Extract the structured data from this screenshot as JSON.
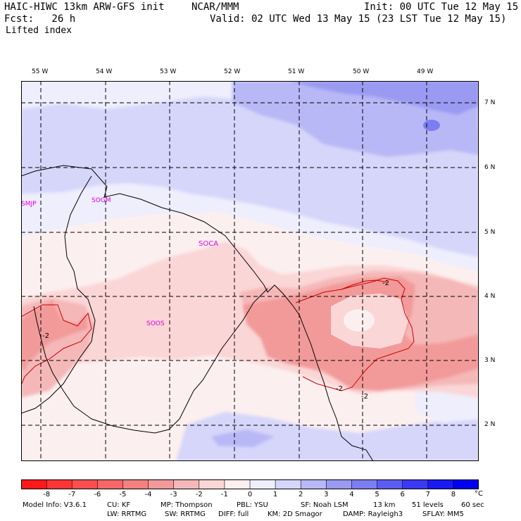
{
  "header": {
    "model": "HAIC-HIWC 13km ARW-GFS init",
    "org": "NCAR/MMM",
    "init": "Init: 00 UTC Tue 12 May 15",
    "fcst": "Fcst:   26 h",
    "valid": "Valid: 02 UTC Wed 13 May 15 (23 LST Tue 12 May 15)",
    "field": "Lifted index"
  },
  "map": {
    "lon_ticks": [
      "55 W",
      "54 W",
      "53 W",
      "52 W",
      "51 W",
      "50 W",
      "49 W"
    ],
    "lat_ticks": [
      "7 N",
      "6 N",
      "5 N",
      "4 N",
      "3 N",
      "2 N"
    ],
    "stations": [
      "SMJP",
      "SOGM",
      "SOCA",
      "SOOS"
    ],
    "contour_labels": [
      "-2",
      "-2",
      "-2",
      "-2"
    ]
  },
  "colorbar": {
    "labels": [
      "-8",
      "-7",
      "-6",
      "-5",
      "-4",
      "-3",
      "-2",
      "-1",
      "0",
      "1",
      "2",
      "3",
      "4",
      "5",
      "6",
      "7",
      "8"
    ],
    "unit": "°C",
    "colors": [
      "#ff1a1a",
      "#fd3535",
      "#fa4f4f",
      "#f76767",
      "#f48080",
      "#f29a9a",
      "#f5b8b8",
      "#fbd6d6",
      "#fcefef",
      "#eeeefd",
      "#d6d6fb",
      "#b8b8f6",
      "#9a9af2",
      "#7d7df2",
      "#5c5cf2",
      "#3a3af2",
      "#1a1af2",
      "#0000f2"
    ]
  },
  "footer": {
    "line1": [
      "Model Info: V3.6.1",
      "CU: KF",
      "MP: Thompson",
      "PBL: YSU",
      "SF: Noah LSM",
      "13 km",
      "51 levels",
      "60 sec"
    ],
    "line2": [
      "LW: RRTMG",
      "SW: RRTMG",
      "DIFF: full",
      "KM: 2D Smagor",
      "DAMP: Rayleigh3",
      "SFLAY: MM5"
    ]
  }
}
